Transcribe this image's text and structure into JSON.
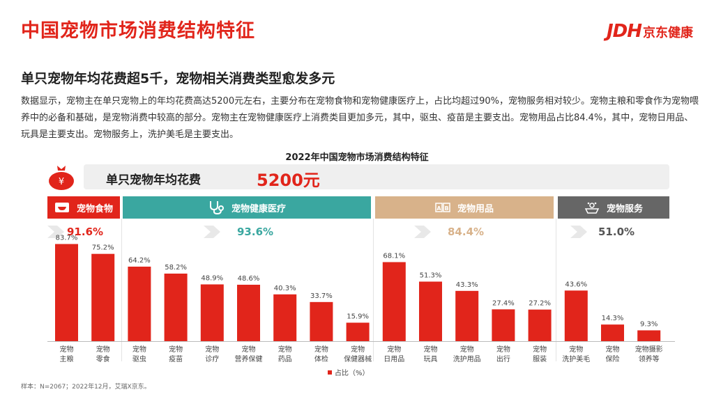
{
  "page_title": "中国宠物市场消费结构特征",
  "brand": {
    "mark": "JDH",
    "name": "京东健康"
  },
  "subtitle": "单只宠物年均花费超5千，宠物相关消费类型愈发多元",
  "paragraph": "数据显示，宠物主在单只宠物上的年均花费高达5200元左右，主要分布在宠物食物和宠物健康医疗上，占比均超过90%，宠物服务相对较少。宠物主粮和零食作为宠物喂养中的必备和基础，是宠物消费中较高的部分。宠物主在宠物健康医疗上消费类目更加多元，其中，驱虫、疫苗是主要支出。宠物用品占比84.4%，其中，宠物日用品、玩具是主要支出。宠物服务上，洗护美毛是主要支出。",
  "spend": {
    "label": "单只宠物年均花费",
    "value": "5200元"
  },
  "footnote": "样本：N=2067；2022年12月，艾瑞X京东。",
  "colors": {
    "accent": "#e1251b",
    "food": "#e1251b",
    "health": "#3aa7a0",
    "supplies": "#d8b28a",
    "service": "#666666"
  },
  "chart_data": {
    "type": "bar",
    "title": "2022年中国宠物市场消费结构特征",
    "legend": [
      "占比（%）"
    ],
    "legend_position": "bottom",
    "ylim": [
      0,
      100
    ],
    "groups": [
      {
        "name": "宠物食物",
        "share": "91.6%",
        "icon": "food-bowl-icon",
        "color": "#e1251b",
        "categories": [
          "宠物\n主粮",
          "宠物\n零食"
        ],
        "values": [
          83.7,
          75.2
        ]
      },
      {
        "name": "宠物健康医疗",
        "share": "93.6%",
        "icon": "stethoscope-icon",
        "color": "#3aa7a0",
        "categories": [
          "宠物\n驱虫",
          "宠物\n疫苗",
          "宠物\n诊疗",
          "宠物\n营养保健",
          "宠物\n药品",
          "宠物\n体检",
          "宠物\n保健器械"
        ],
        "values": [
          64.2,
          58.2,
          48.9,
          48.6,
          40.3,
          33.7,
          15.9
        ]
      },
      {
        "name": "宠物用品",
        "share": "84.4%",
        "icon": "toy-blocks-icon",
        "color": "#d8b28a",
        "categories": [
          "宠物\n日用品",
          "宠物\n玩具",
          "宠物\n洗护用品",
          "宠物\n出行",
          "宠物\n服装"
        ],
        "values": [
          68.1,
          51.3,
          43.3,
          27.4,
          27.2
        ]
      },
      {
        "name": "宠物服务",
        "share": "51.0%",
        "icon": "pet-service-icon",
        "color": "#666666",
        "categories": [
          "宠物\n洗护美毛",
          "宠物\n保险",
          "宠物摄影\n领养等"
        ],
        "values": [
          43.6,
          14.3,
          9.3
        ]
      }
    ]
  }
}
